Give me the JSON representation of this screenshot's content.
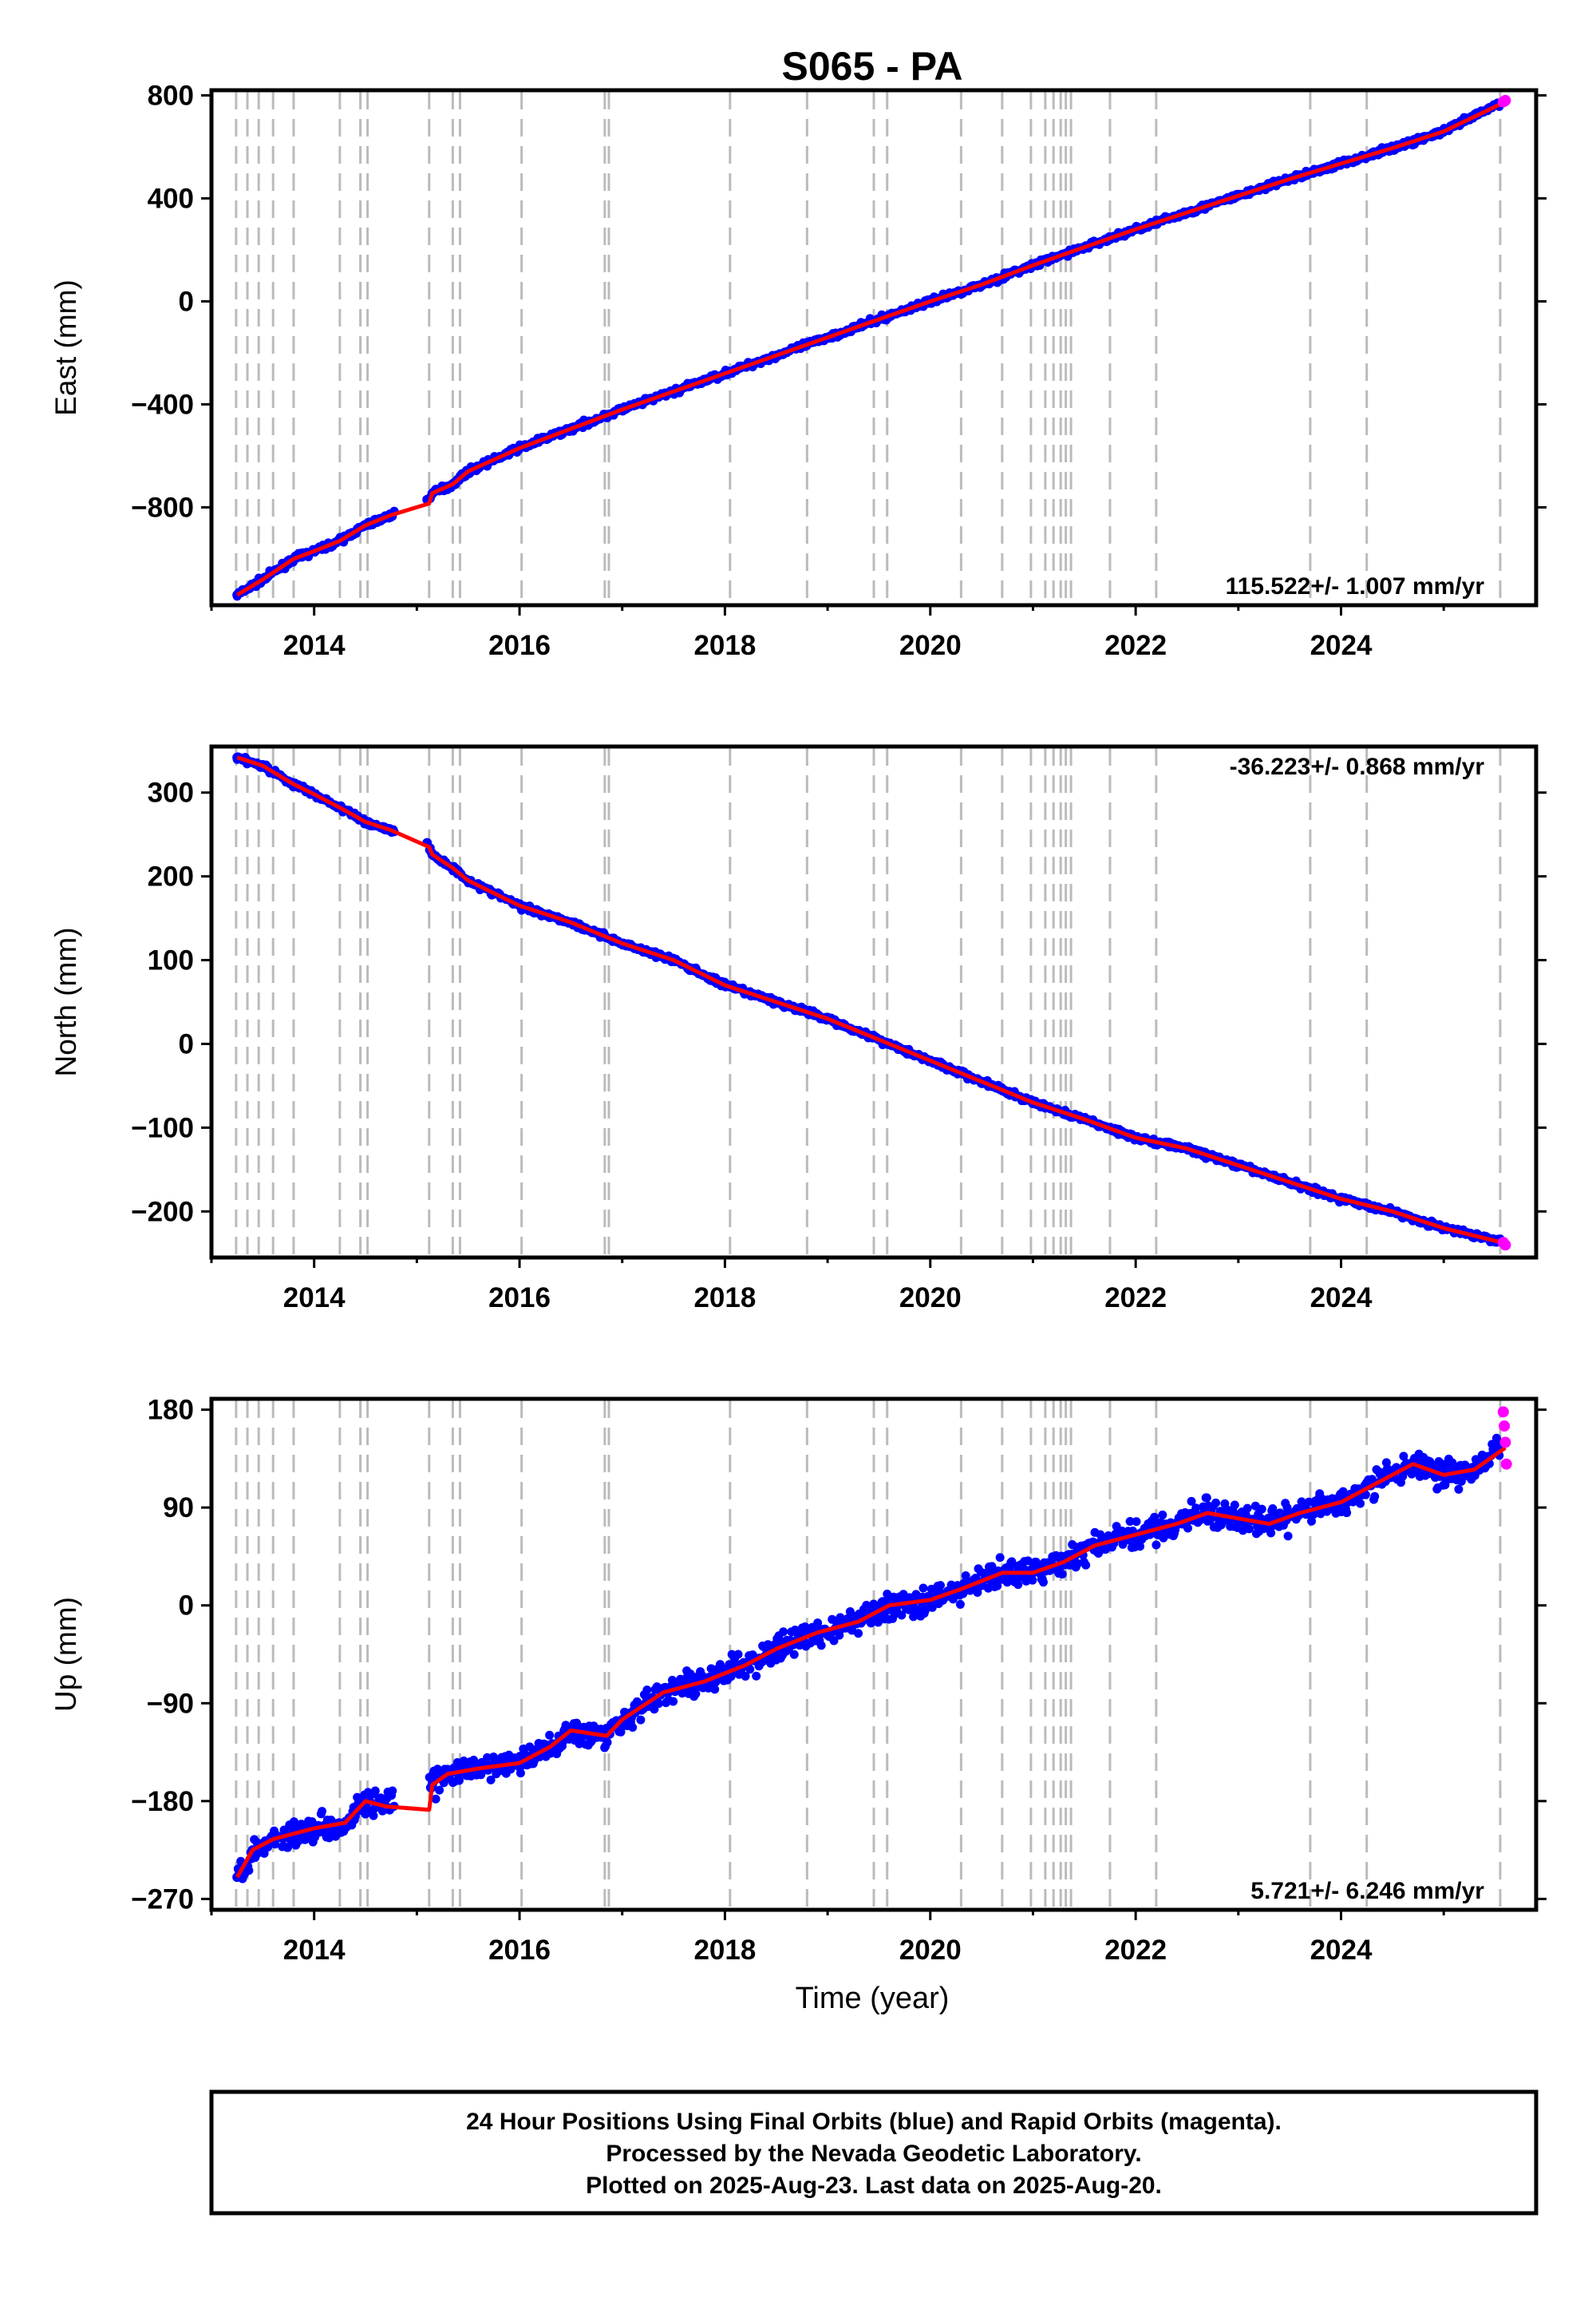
{
  "title": "S065 - PA",
  "xlabel": "Time (year)",
  "colors": {
    "final_orbits": "#0000ff",
    "rapid_orbits": "#ff00ff",
    "trend_line": "#ff0000",
    "event_lines": "#bbbbbb",
    "frame": "#000000"
  },
  "footer": {
    "line1": "24 Hour Positions Using Final Orbits (blue) and Rapid Orbits (magenta).",
    "line2": "Processed by the Nevada Geodetic Laboratory.",
    "line3": "Plotted on 2025-Aug-23. Last data on 2025-Aug-20."
  },
  "event_years": [
    2013.24,
    2013.35,
    2013.46,
    2013.6,
    2013.8,
    2014.25,
    2014.45,
    2014.52,
    2015.12,
    2015.35,
    2015.42,
    2016.02,
    2016.83,
    2016.87,
    2018.05,
    2018.8,
    2019.45,
    2019.58,
    2020.3,
    2020.7,
    2020.98,
    2021.12,
    2021.2,
    2021.27,
    2021.32,
    2021.37,
    2021.75,
    2022.2,
    2023.7,
    2024.25,
    2025.55
  ],
  "chart_data": [
    {
      "type": "scatter",
      "component": "East",
      "ylabel": "East (mm)",
      "xlim": [
        2013.0,
        2025.9
      ],
      "ylim": [
        -1180,
        820
      ],
      "x_ticks": [
        2014,
        2016,
        2018,
        2020,
        2022,
        2024
      ],
      "x_tick_labels": [
        "2014",
        "2016",
        "2018",
        "2020",
        "2022",
        "2024"
      ],
      "y_ticks": [
        800,
        400,
        0,
        -400,
        -800
      ],
      "y_tick_labels": [
        "800",
        "400",
        "0",
        "−400",
        "−800"
      ],
      "rate_label": "115.522+/- 1.007 mm/yr",
      "rate_position": "bottom-right",
      "grid": false,
      "series": [
        {
          "role": "final-orbits",
          "x": [
            2013.25,
            2013.5,
            2013.8,
            2014.0,
            2014.25,
            2014.5,
            2014.75,
            2015.1,
            2015.15,
            2015.35,
            2015.5,
            2016.0,
            2016.5,
            2017.0,
            2017.5,
            2018.0,
            2018.5,
            2019.0,
            2019.5,
            2020.0,
            2020.5,
            2021.0,
            2021.5,
            2022.0,
            2022.5,
            2023.0,
            2023.5,
            2024.0,
            2024.5,
            2025.0,
            2025.55
          ],
          "y": [
            -1140,
            -1080,
            -1000,
            -970,
            -930,
            -870,
            -830,
            -770,
            -745,
            -710,
            -660,
            -570,
            -495,
            -420,
            -350,
            -280,
            -210,
            -140,
            -70,
            0,
            65,
            140,
            210,
            280,
            345,
            410,
            475,
            535,
            595,
            660,
            770
          ]
        },
        {
          "role": "rapid-orbits",
          "x": [
            2025.58,
            2025.6
          ],
          "y": [
            775,
            780
          ]
        },
        {
          "role": "trend",
          "x": [
            2013.25,
            2013.5,
            2013.8,
            2014.0,
            2014.25,
            2014.5,
            2014.75,
            2015.12,
            2015.15,
            2015.35,
            2015.5,
            2016.0,
            2016.5,
            2017.0,
            2017.5,
            2018.0,
            2018.5,
            2019.0,
            2019.5,
            2020.0,
            2020.5,
            2021.0,
            2021.5,
            2022.0,
            2022.5,
            2023.0,
            2023.5,
            2024.0,
            2024.5,
            2025.0,
            2025.6
          ],
          "y": [
            -1140,
            -1080,
            -1000,
            -970,
            -930,
            -870,
            -830,
            -785,
            -745,
            -710,
            -660,
            -570,
            -495,
            -420,
            -350,
            -280,
            -210,
            -140,
            -70,
            0,
            65,
            140,
            210,
            280,
            345,
            410,
            475,
            535,
            595,
            660,
            775
          ]
        }
      ]
    },
    {
      "type": "scatter",
      "component": "North",
      "ylabel": "North (mm)",
      "xlim": [
        2013.0,
        2025.9
      ],
      "ylim": [
        -255,
        355
      ],
      "x_ticks": [
        2014,
        2016,
        2018,
        2020,
        2022,
        2024
      ],
      "x_tick_labels": [
        "2014",
        "2016",
        "2018",
        "2020",
        "2022",
        "2024"
      ],
      "y_ticks": [
        300,
        200,
        100,
        0,
        -100,
        -200
      ],
      "y_tick_labels": [
        "300",
        "200",
        "100",
        "0",
        "−100",
        "−200"
      ],
      "rate_label": "-36.223+/- 0.868 mm/yr",
      "rate_position": "top-right",
      "grid": false,
      "series": [
        {
          "role": "final-orbits",
          "x": [
            2013.25,
            2013.5,
            2013.8,
            2014.0,
            2014.25,
            2014.5,
            2014.75,
            2015.1,
            2015.15,
            2015.35,
            2015.5,
            2016.0,
            2016.5,
            2017.0,
            2017.5,
            2018.0,
            2018.5,
            2019.0,
            2019.5,
            2020.0,
            2020.5,
            2021.0,
            2021.5,
            2022.0,
            2022.5,
            2023.0,
            2023.5,
            2024.0,
            2024.5,
            2025.0,
            2025.55
          ],
          "y": [
            342,
            332,
            310,
            298,
            282,
            265,
            255,
            240,
            226,
            210,
            195,
            165,
            145,
            120,
            100,
            70,
            50,
            30,
            5,
            -20,
            -45,
            -70,
            -90,
            -112,
            -125,
            -145,
            -165,
            -185,
            -200,
            -220,
            -235
          ]
        },
        {
          "role": "rapid-orbits",
          "x": [
            2025.58,
            2025.6
          ],
          "y": [
            -237,
            -240
          ]
        },
        {
          "role": "trend",
          "x": [
            2013.25,
            2013.5,
            2013.8,
            2014.0,
            2014.25,
            2014.5,
            2014.75,
            2015.12,
            2015.15,
            2015.35,
            2015.5,
            2016.0,
            2016.5,
            2017.0,
            2017.5,
            2018.0,
            2018.5,
            2019.0,
            2019.5,
            2020.0,
            2020.5,
            2021.0,
            2021.5,
            2022.0,
            2022.5,
            2023.0,
            2023.5,
            2024.0,
            2024.5,
            2025.0,
            2025.6
          ],
          "y": [
            342,
            332,
            310,
            298,
            282,
            265,
            255,
            235,
            226,
            210,
            195,
            165,
            145,
            120,
            100,
            70,
            50,
            30,
            5,
            -20,
            -45,
            -70,
            -90,
            -112,
            -125,
            -145,
            -165,
            -185,
            -200,
            -220,
            -238
          ]
        }
      ]
    },
    {
      "type": "scatter",
      "component": "Up",
      "ylabel": "Up (mm)",
      "xlim": [
        2013.0,
        2025.9
      ],
      "ylim": [
        -280,
        190
      ],
      "x_ticks": [
        2014,
        2016,
        2018,
        2020,
        2022,
        2024
      ],
      "x_tick_labels": [
        "2014",
        "2016",
        "2018",
        "2020",
        "2022",
        "2024"
      ],
      "y_ticks": [
        180,
        90,
        0,
        -90,
        -180,
        -270
      ],
      "y_tick_labels": [
        "180",
        "90",
        "0",
        "−90",
        "−180",
        "−270"
      ],
      "rate_label": "5.721+/- 6.246 mm/yr",
      "rate_position": "bottom-right",
      "grid": false,
      "series": [
        {
          "role": "final-orbits",
          "x": [
            2013.25,
            2013.4,
            2013.6,
            2013.8,
            2014.0,
            2014.3,
            2014.5,
            2014.7,
            2015.15,
            2015.3,
            2015.6,
            2016.0,
            2016.3,
            2016.5,
            2016.85,
            2017.0,
            2017.4,
            2017.8,
            2018.2,
            2018.5,
            2018.9,
            2019.3,
            2019.6,
            2020.0,
            2020.3,
            2020.7,
            2021.0,
            2021.3,
            2021.6,
            2022.0,
            2022.4,
            2022.7,
            2023.0,
            2023.3,
            2023.6,
            2024.0,
            2024.4,
            2024.7,
            2025.0,
            2025.3,
            2025.55
          ],
          "y": [
            -250,
            -225,
            -215,
            -210,
            -205,
            -200,
            -180,
            -185,
            -165,
            -155,
            -150,
            -145,
            -130,
            -115,
            -120,
            -105,
            -80,
            -70,
            -55,
            -40,
            -25,
            -15,
            0,
            5,
            15,
            30,
            30,
            40,
            55,
            65,
            75,
            85,
            80,
            75,
            85,
            95,
            115,
            130,
            120,
            125,
            145
          ]
        },
        {
          "role": "rapid-orbits",
          "x": [
            2025.58,
            2025.59,
            2025.6,
            2025.61
          ],
          "y": [
            178,
            165,
            150,
            130
          ]
        },
        {
          "role": "trend",
          "x": [
            2013.25,
            2013.4,
            2013.6,
            2013.8,
            2014.0,
            2014.3,
            2014.5,
            2014.7,
            2015.12,
            2015.15,
            2015.3,
            2015.6,
            2016.0,
            2016.3,
            2016.5,
            2016.85,
            2017.0,
            2017.4,
            2017.8,
            2018.2,
            2018.5,
            2018.9,
            2019.3,
            2019.6,
            2020.0,
            2020.3,
            2020.7,
            2021.0,
            2021.3,
            2021.6,
            2022.0,
            2022.4,
            2022.7,
            2023.0,
            2023.3,
            2023.6,
            2024.0,
            2024.4,
            2024.7,
            2025.0,
            2025.3,
            2025.6
          ],
          "y": [
            -250,
            -225,
            -215,
            -210,
            -205,
            -200,
            -180,
            -185,
            -188,
            -165,
            -155,
            -150,
            -145,
            -130,
            -115,
            -120,
            -105,
            -80,
            -70,
            -55,
            -40,
            -25,
            -15,
            0,
            5,
            15,
            30,
            30,
            40,
            55,
            65,
            75,
            85,
            80,
            75,
            85,
            95,
            115,
            130,
            120,
            125,
            145
          ]
        }
      ]
    }
  ]
}
